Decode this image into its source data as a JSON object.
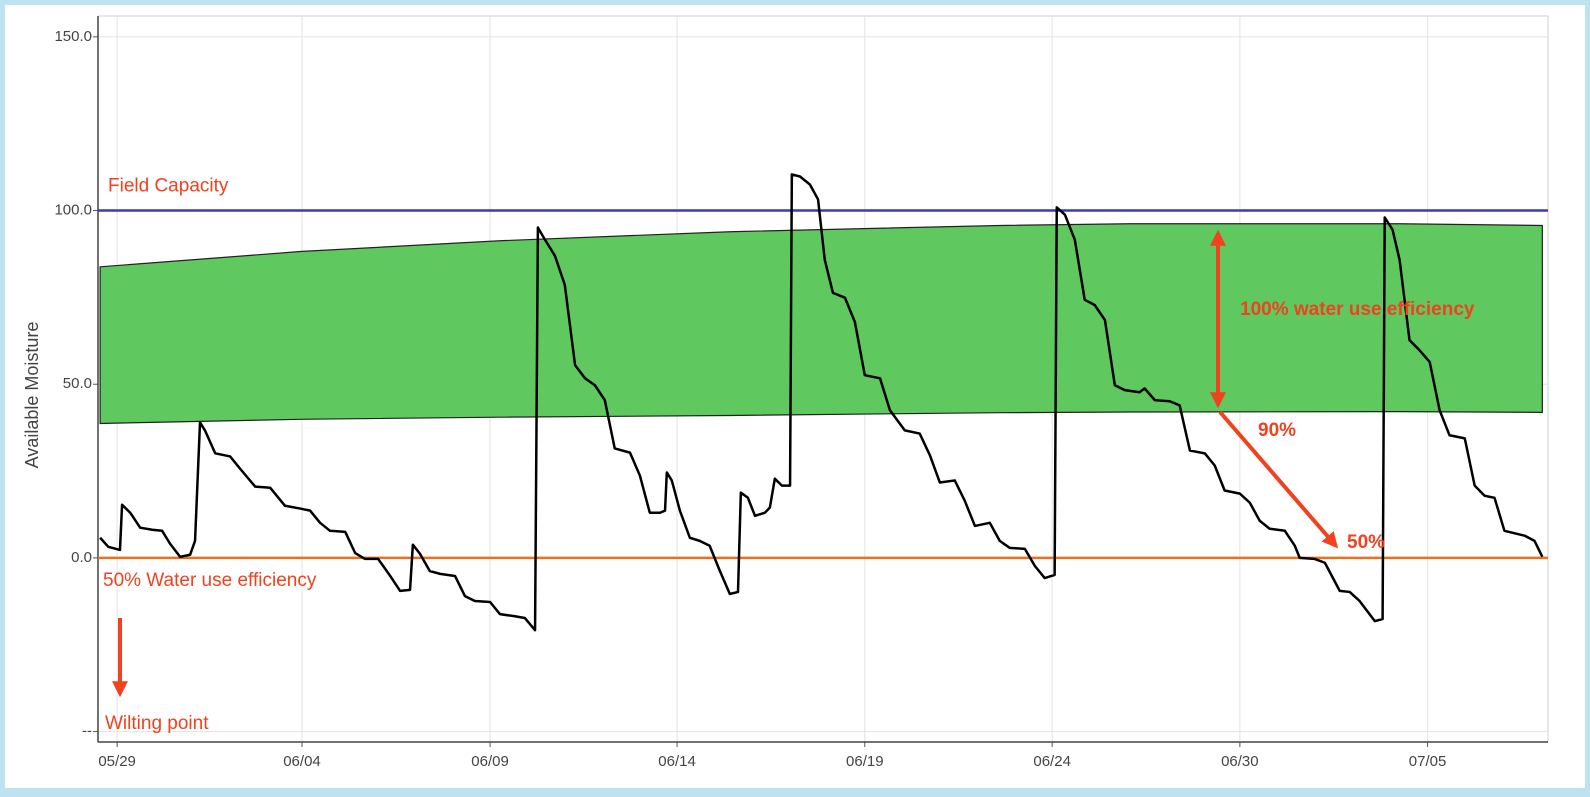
{
  "chart_data": {
    "type": "line",
    "ylabel": "Available Moisture",
    "xlim": [
      -0.54,
      40.4
    ],
    "ylim": [
      -53,
      156
    ],
    "grid": true,
    "xticks": [
      {
        "value": 0,
        "label": "05/29"
      },
      {
        "value": 5.22,
        "label": "06/04"
      },
      {
        "value": 10.53,
        "label": "06/09"
      },
      {
        "value": 15.81,
        "label": "06/14"
      },
      {
        "value": 21.11,
        "label": "06/19"
      },
      {
        "value": 26.4,
        "label": "06/24"
      },
      {
        "value": 31.7,
        "label": "06/30"
      },
      {
        "value": 37.0,
        "label": "07/05"
      }
    ],
    "yticks": [
      {
        "value": -50,
        "label": "--"
      },
      {
        "value": 0,
        "label": "0.0"
      },
      {
        "value": 50,
        "label": "50.0"
      },
      {
        "value": 100,
        "label": "100.0"
      },
      {
        "value": 150,
        "label": "150.0"
      }
    ],
    "band": {
      "color": "#5fc85f",
      "x": [
        -0.48,
        5.17,
        10.81,
        17.3,
        24.92,
        28.59,
        36.21,
        40.24
      ],
      "upper": [
        83.8,
        88.2,
        91.3,
        93.9,
        95.7,
        96.2,
        96.2,
        95.7
      ],
      "lower": [
        38.7,
        39.9,
        40.5,
        41.0,
        41.8,
        42.0,
        42.1,
        41.9
      ]
    },
    "hlines": [
      {
        "value": 100,
        "color": "#3b3bb8",
        "label": "Field Capacity"
      },
      {
        "value": 0,
        "color": "#e8731c",
        "label": "50% Water use efficiency"
      }
    ],
    "annotations": [
      "Wilting point",
      "100% water use efficiency",
      "90%",
      "50%"
    ],
    "x": [
      -0.48,
      -0.25,
      0.08,
      0.14,
      0.37,
      0.65,
      0.99,
      1.27,
      1.5,
      1.78,
      2.06,
      2.2,
      2.34,
      2.48,
      2.77,
      3.19,
      3.47,
      3.9,
      4.32,
      4.74,
      5.17,
      5.45,
      5.73,
      6.01,
      6.44,
      6.72,
      7.0,
      7.37,
      7.71,
      7.99,
      8.27,
      8.35,
      8.55,
      8.83,
      9.12,
      9.54,
      9.82,
      10.1,
      10.53,
      10.81,
      11.23,
      11.51,
      11.8,
      11.88,
      12.08,
      12.36,
      12.64,
      12.93,
      13.21,
      13.49,
      13.77,
      14.05,
      14.48,
      14.76,
      15.04,
      15.33,
      15.47,
      15.52,
      15.66,
      15.89,
      16.17,
      16.45,
      16.73,
      17.02,
      17.3,
      17.53,
      17.61,
      17.81,
      18.01,
      18.29,
      18.43,
      18.57,
      18.77,
      19.0,
      19.05,
      19.28,
      19.56,
      19.79,
      19.98,
      20.21,
      20.55,
      20.83,
      21.11,
      21.54,
      21.82,
      22.24,
      22.66,
      22.95,
      23.23,
      23.65,
      23.93,
      24.22,
      24.64,
      24.92,
      25.2,
      25.63,
      25.91,
      26.19,
      26.47,
      26.53,
      26.76,
      27.04,
      27.32,
      27.6,
      27.89,
      28.17,
      28.45,
      28.87,
      29.01,
      29.3,
      29.72,
      30.0,
      30.29,
      30.71,
      30.99,
      31.27,
      31.7,
      31.98,
      32.26,
      32.54,
      32.97,
      33.25,
      33.39,
      33.81,
      34.1,
      34.52,
      34.8,
      35.08,
      35.51,
      35.73,
      35.79,
      36.01,
      36.21,
      36.49,
      36.77,
      37.06,
      37.34,
      37.62,
      38.05,
      38.33,
      38.61,
      38.89,
      39.17,
      39.74,
      40.02,
      40.24
    ],
    "series": [
      {
        "color": "#000000",
        "values": [
          5.8,
          3.2,
          2.3,
          15.3,
          13.0,
          8.7,
          8.1,
          7.8,
          4.0,
          0.3,
          0.9,
          4.9,
          39.0,
          36.7,
          30.1,
          29.2,
          25.7,
          20.5,
          20.2,
          15.0,
          14.2,
          13.6,
          10.1,
          7.8,
          7.5,
          1.4,
          -0.3,
          -0.3,
          -5.2,
          -9.5,
          -9.2,
          3.8,
          1.2,
          -3.8,
          -4.6,
          -5.2,
          -11.0,
          -12.4,
          -12.7,
          -16.2,
          -16.8,
          -17.3,
          -20.8,
          95.1,
          91.6,
          87.0,
          78.6,
          55.5,
          51.7,
          49.7,
          45.4,
          31.5,
          30.3,
          23.7,
          13.0,
          13.0,
          13.6,
          24.6,
          22.3,
          13.6,
          5.8,
          4.9,
          3.5,
          -3.8,
          -10.4,
          -9.8,
          18.8,
          17.3,
          12.1,
          13.0,
          14.5,
          22.8,
          20.8,
          20.8,
          110.4,
          109.8,
          107.5,
          103.2,
          85.8,
          76.3,
          74.9,
          67.9,
          52.6,
          51.7,
          42.5,
          36.7,
          35.8,
          29.5,
          21.7,
          22.3,
          16.5,
          9.2,
          10.1,
          4.9,
          2.9,
          2.6,
          -2.3,
          -5.8,
          -4.9,
          100.9,
          98.8,
          91.6,
          74.3,
          72.8,
          68.5,
          49.7,
          48.3,
          47.7,
          48.8,
          45.4,
          45.1,
          43.9,
          30.9,
          30.1,
          26.6,
          19.4,
          18.5,
          15.9,
          10.7,
          8.4,
          7.8,
          3.5,
          0,
          -0.3,
          -1.4,
          -9.5,
          -9.8,
          -12.4,
          -18.2,
          -17.6,
          98.0,
          94.5,
          85.8,
          62.7,
          59.8,
          56.4,
          42.5,
          35.3,
          34.4,
          20.8,
          17.9,
          17.3,
          7.8,
          6.4,
          4.9,
          0.3
        ]
      }
    ]
  }
}
